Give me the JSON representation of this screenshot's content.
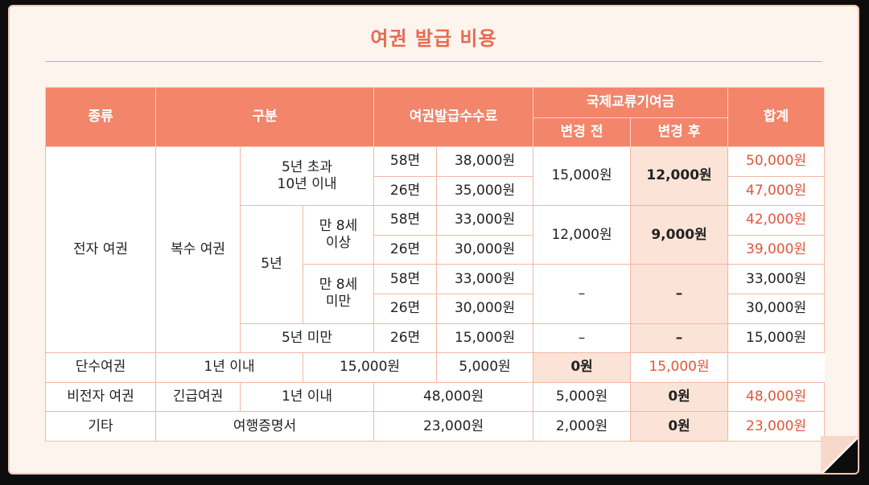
{
  "title": "여권 발급 비용",
  "headers": {
    "type": "종류",
    "category": "구분",
    "fee": "여권발급수수료",
    "intl": "국제교류기여금",
    "before": "변경 전",
    "after": "변경 후",
    "total": "합계"
  },
  "rows": {
    "electronic": "전자 여권",
    "multiple": "복수 여권",
    "over5_l1": "5년 초과",
    "over5_l2": "10년 이내",
    "five": "5년",
    "age8up_l1": "만 8세",
    "age8up_l2": "이상",
    "age8down_l1": "만 8세",
    "age8down_l2": "미만",
    "under5": "5년 미만",
    "single": "단수여권",
    "within1": "1년 이내",
    "non_electronic": "비전자 여권",
    "emergency": "긴급여권",
    "within1b": "1년 이내",
    "etc": "기타",
    "travel_cert": "여행증명서"
  },
  "cells": {
    "r1": {
      "pages": "58면",
      "fee": "38,000원",
      "total": "50,000원"
    },
    "r2": {
      "pages": "26면",
      "fee": "35,000원",
      "total": "47,000원"
    },
    "r1_before": "15,000원",
    "r1_after": "12,000원",
    "r3": {
      "pages": "58면",
      "fee": "33,000원",
      "total": "42,000원"
    },
    "r4": {
      "pages": "26면",
      "fee": "30,000원",
      "total": "39,000원"
    },
    "r3_before": "12,000원",
    "r3_after": "9,000원",
    "r5": {
      "pages": "58면",
      "fee": "33,000원",
      "total": "33,000원"
    },
    "r6": {
      "pages": "26면",
      "fee": "30,000원",
      "total": "30,000원"
    },
    "r5_before": "–",
    "r5_after": "–",
    "r7": {
      "pages": "26면",
      "fee": "15,000원",
      "before": "–",
      "after": "–",
      "total": "15,000원"
    },
    "r8": {
      "fee": "15,000원",
      "before": "5,000원",
      "after": "0원",
      "total": "15,000원"
    },
    "r9": {
      "fee": "48,000원",
      "before": "5,000원",
      "after": "0원",
      "total": "48,000원"
    },
    "r10": {
      "fee": "23,000원",
      "before": "2,000원",
      "after": "0원",
      "total": "23,000원"
    }
  },
  "colors": {
    "header_bg": "#f2856a",
    "title": "#e86a50",
    "after_bg": "#fce3d8",
    "total_text": "#e2553a",
    "card_bg": "#fdf4ee"
  }
}
